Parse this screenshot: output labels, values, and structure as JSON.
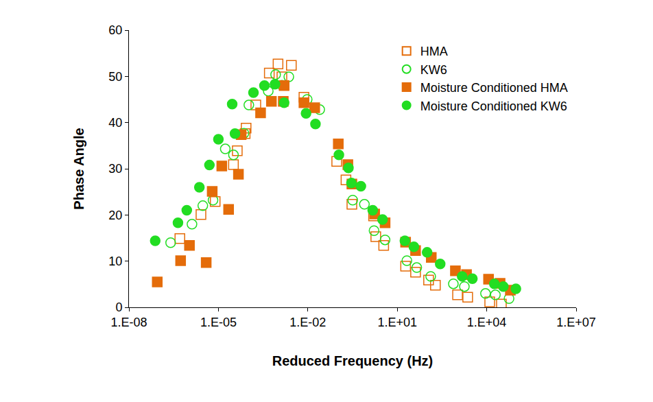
{
  "chart_data": {
    "type": "scatter",
    "x_label": "Reduced Frequency (Hz)",
    "y_label": "Phase Angle",
    "log": "x",
    "grid": false,
    "legend": "top-right",
    "xlim": [
      1e-08,
      10000000.0
    ],
    "xticks": [
      {
        "value": 1e-08,
        "label": "1.E-08"
      },
      {
        "value": 1e-05,
        "label": "1.E-05"
      },
      {
        "value": 0.01,
        "label": "1.E-02"
      },
      {
        "value": 10,
        "label": "1.E+01"
      },
      {
        "value": 10000,
        "label": "1.E+04"
      },
      {
        "value": 10000000,
        "label": "1.E+07"
      }
    ],
    "ylim": [
      0,
      60
    ],
    "yticks": [
      0,
      10,
      20,
      30,
      40,
      50,
      60
    ],
    "series": [
      {
        "name": "HMA",
        "color": "#e46c0a",
        "marker": "square-open",
        "x": [
          5.1e-07,
          2.6e-06,
          7.8e-06,
          3.2e-05,
          4.3e-05,
          7.9e-05,
          8.5e-05,
          0.00018,
          0.00051,
          0.001,
          0.00135,
          0.0028,
          0.0074,
          0.093,
          0.19,
          0.3,
          1.6,
          1.9,
          3.5,
          19,
          41,
          112,
          190,
          1050,
          2300,
          12600,
          31000
        ],
        "values": [
          14.9,
          20.1,
          22.9,
          30.9,
          33.9,
          37.6,
          38.8,
          43.8,
          50.7,
          52.7,
          49.9,
          52.4,
          45.5,
          31.6,
          27.6,
          22.3,
          19.8,
          15.3,
          13.4,
          8.9,
          7.6,
          5.9,
          4.8,
          2.7,
          2.2,
          1.2,
          0.7
        ]
      },
      {
        "name": "KW6",
        "color": "#22dd22",
        "marker": "circle-open",
        "x": [
          2.5e-07,
          1.3e-06,
          3e-06,
          6.6e-06,
          1.7e-05,
          3.2e-05,
          7.2e-05,
          0.000105,
          0.00047,
          0.00083,
          0.00135,
          0.0023,
          0.0095,
          0.025,
          0.32,
          0.79,
          1.66,
          3.9,
          21,
          45,
          132,
          760,
          1780,
          9100,
          19500,
          56000
        ],
        "values": [
          14.0,
          18.0,
          22.0,
          23.2,
          34.3,
          33.0,
          37.7,
          43.8,
          46.8,
          50.4,
          48.1,
          49.9,
          45.0,
          42.8,
          23.2,
          22.3,
          16.6,
          14.6,
          10.1,
          8.6,
          6.7,
          5.1,
          4.5,
          3.0,
          2.7,
          1.9
        ]
      },
      {
        "name": "Moisture Conditioned HMA",
        "color": "#e46c0a",
        "marker": "square",
        "x": [
          8.9e-08,
          5.4e-07,
          1.07e-06,
          3.9e-06,
          6.2e-06,
          1.3e-05,
          2.2e-05,
          4.7e-05,
          5.8e-05,
          0.00026,
          0.0006,
          0.0015,
          0.0016,
          0.0074,
          0.017,
          0.105,
          0.22,
          0.3,
          1.74,
          3.9,
          19,
          41,
          138,
          890,
          2100,
          11500,
          28000,
          62000
        ],
        "values": [
          5.5,
          10.1,
          13.4,
          9.7,
          25.1,
          30.6,
          21.2,
          28.8,
          37.4,
          42.1,
          44.6,
          44.6,
          48.0,
          44.3,
          43.2,
          35.4,
          30.9,
          26.7,
          20.2,
          18.3,
          14.1,
          12.3,
          10.8,
          7.9,
          7.1,
          6.1,
          5.2,
          3.7
        ]
      },
      {
        "name": "Moisture Conditioned KW6",
        "color": "#22dd22",
        "marker": "circle",
        "x": [
          7.6e-08,
          4.4e-07,
          8.7e-07,
          2.3e-06,
          5e-06,
          1e-05,
          2.9e-05,
          3.6e-05,
          0.00015,
          0.00035,
          0.00079,
          0.0016,
          0.0087,
          0.018,
          0.11,
          0.23,
          0.29,
          0.6,
          1.5,
          3.2,
          18,
          36,
          100,
          275,
          1500,
          3300,
          18000,
          36000,
          95000
        ],
        "values": [
          14.4,
          18.3,
          21.0,
          26.0,
          30.8,
          36.4,
          44.0,
          37.6,
          46.5,
          48.0,
          48.3,
          44.3,
          42.0,
          39.7,
          33.0,
          30.2,
          26.9,
          26.2,
          21.0,
          19.0,
          14.4,
          13.1,
          11.9,
          9.4,
          6.7,
          6.2,
          5.1,
          4.5,
          4.0
        ]
      }
    ]
  }
}
